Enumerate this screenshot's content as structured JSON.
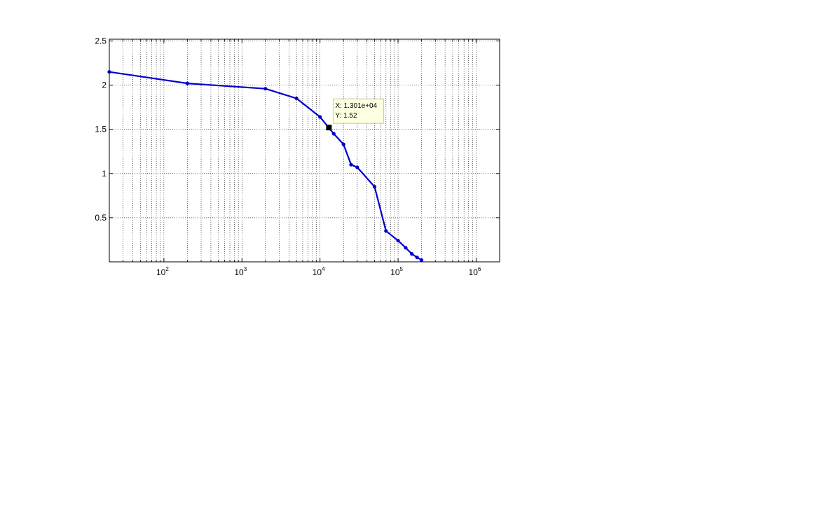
{
  "chart_data": {
    "type": "line",
    "title": "",
    "xlabel": "",
    "ylabel": "",
    "x_scale": "log",
    "xlim": [
      20,
      2000000
    ],
    "ylim": [
      0,
      2.52
    ],
    "grid": true,
    "x_ticks": [
      {
        "base": "10",
        "exp": "2",
        "value": 100
      },
      {
        "base": "10",
        "exp": "3",
        "value": 1000
      },
      {
        "base": "10",
        "exp": "4",
        "value": 10000
      },
      {
        "base": "10",
        "exp": "5",
        "value": 100000
      },
      {
        "base": "10",
        "exp": "6",
        "value": 1000000
      }
    ],
    "y_ticks": [
      {
        "label": "0.5",
        "value": 0.5
      },
      {
        "label": "1",
        "value": 1
      },
      {
        "label": "1.5",
        "value": 1.5
      },
      {
        "label": "2",
        "value": 2
      },
      {
        "label": "2.5",
        "value": 2.5
      }
    ],
    "series": [
      {
        "color": "#0000cc",
        "x": [
          20,
          200,
          2000,
          5000,
          10000,
          15000,
          20000,
          25000,
          30000,
          50000,
          70000,
          100000,
          125000,
          150000,
          175000,
          200000
        ],
        "y": [
          2.15,
          2.02,
          1.96,
          1.85,
          1.64,
          1.45,
          1.33,
          1.1,
          1.07,
          0.85,
          0.35,
          0.24,
          0.16,
          0.09,
          0.05,
          0.02
        ]
      }
    ],
    "datatip": {
      "x": 13010,
      "y": 1.52,
      "x_text": "X: 1.301e+04",
      "y_text": "Y: 1.52"
    }
  }
}
